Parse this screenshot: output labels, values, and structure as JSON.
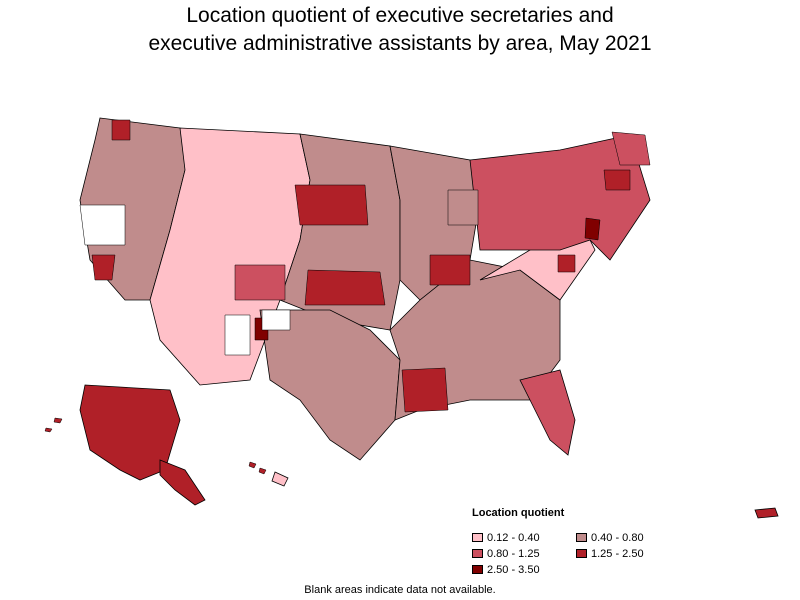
{
  "title": {
    "line1": "Location quotient of executive secretaries and",
    "line2": "executive administrative assistants by area, May 2021"
  },
  "legend": {
    "title": "Location quotient",
    "items": [
      {
        "label": "0.12 - 0.40",
        "color": "#ffc0c8"
      },
      {
        "label": "0.40 - 0.80",
        "color": "#c08c8c"
      },
      {
        "label": "0.80 - 1.25",
        "color": "#cc5060"
      },
      {
        "label": "1.25 - 2.50",
        "color": "#b02028"
      },
      {
        "label": "2.50 - 3.50",
        "color": "#800000"
      }
    ]
  },
  "note": "Blank areas indicate data not available.",
  "colors": {
    "no_data": "#ffffff",
    "border": "#000000"
  }
}
